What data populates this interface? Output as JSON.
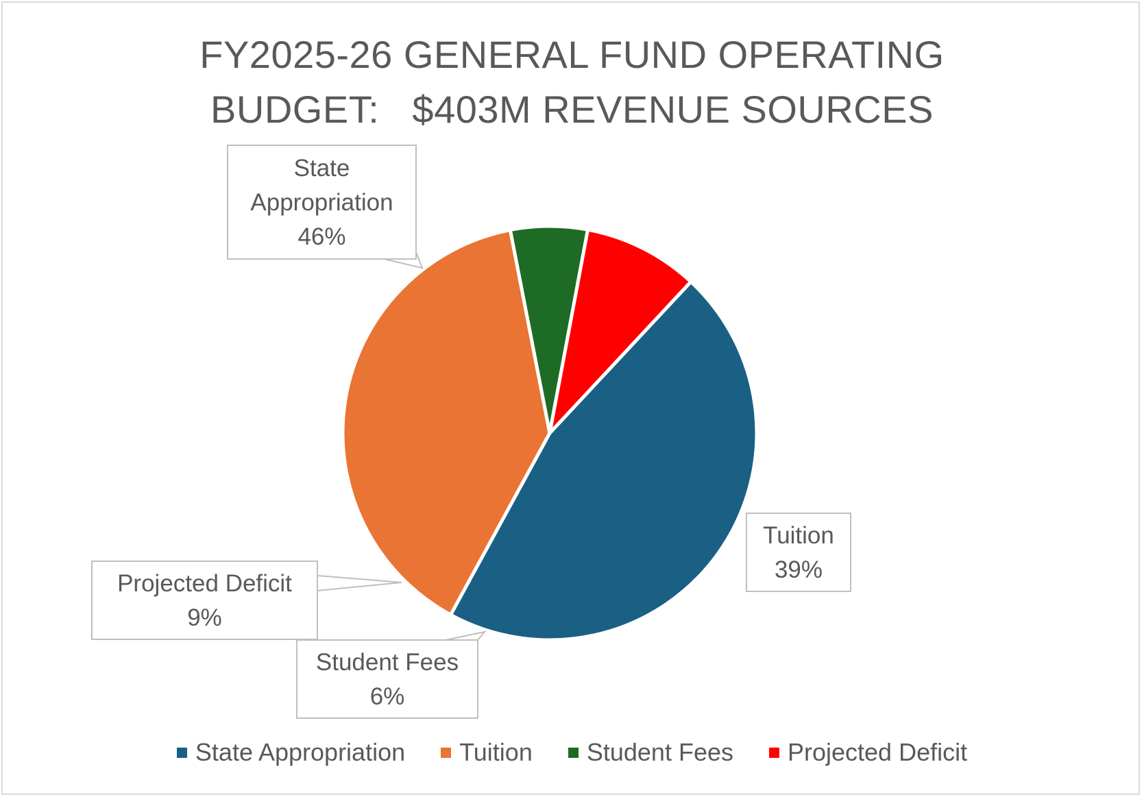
{
  "chart_data": {
    "type": "pie",
    "title_lines": [
      "FY2025-26 GENERAL FUND OPERATING",
      "BUDGET:   $403M REVENUE SOURCES"
    ],
    "slices": [
      {
        "name": "State Appropriation",
        "value": 46,
        "label": "46%",
        "color": "#1a5f84"
      },
      {
        "name": "Tuition",
        "value": 39,
        "label": "39%",
        "color": "#e97434"
      },
      {
        "name": "Student Fees",
        "value": 6,
        "label": "6%",
        "color": "#1e6b26"
      },
      {
        "name": "Projected Deficit",
        "value": 9,
        "label": "9%",
        "color": "#ff0000"
      }
    ],
    "legend_position": "bottom"
  }
}
